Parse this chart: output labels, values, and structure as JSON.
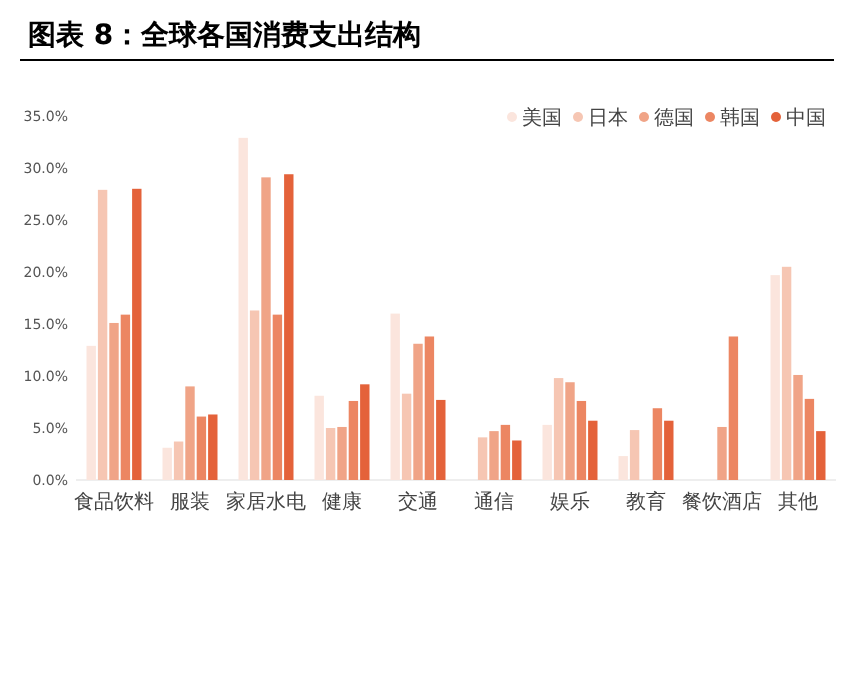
{
  "chart_data": {
    "type": "bar",
    "title": "图表 8：全球各国消费支出结构",
    "categories": [
      "食品饮料",
      "服装",
      "家居水电",
      "健康",
      "交通",
      "通信",
      "娱乐",
      "教育",
      "餐饮酒店",
      "其他"
    ],
    "series": [
      {
        "name": "美国",
        "color": "#fbe5dd",
        "values": [
          12.9,
          3.1,
          32.9,
          8.1,
          16.0,
          null,
          5.3,
          2.3,
          null,
          19.7
        ]
      },
      {
        "name": "日本",
        "color": "#f6c6b3",
        "values": [
          27.9,
          3.7,
          16.3,
          5.0,
          8.3,
          4.1,
          9.8,
          4.8,
          null,
          20.5
        ]
      },
      {
        "name": "德国",
        "color": "#f0a487",
        "values": [
          15.1,
          9.0,
          29.1,
          5.1,
          13.1,
          4.7,
          9.4,
          null,
          5.1,
          10.1
        ]
      },
      {
        "name": "韩国",
        "color": "#ec8662",
        "values": [
          15.9,
          6.1,
          15.9,
          7.6,
          13.8,
          5.3,
          7.6,
          6.9,
          13.8,
          7.8
        ]
      },
      {
        "name": "中国",
        "color": "#e4623a",
        "values": [
          28.0,
          6.3,
          29.4,
          9.2,
          7.7,
          3.8,
          5.7,
          5.7,
          null,
          4.7
        ]
      }
    ],
    "ylim": [
      0,
      35
    ],
    "yticks": [
      {
        "value": 0,
        "label": "0.0%"
      },
      {
        "value": 5,
        "label": "5.0%"
      },
      {
        "value": 10,
        "label": "10.0%"
      },
      {
        "value": 15,
        "label": "15.0%"
      },
      {
        "value": 20,
        "label": "20.0%"
      },
      {
        "value": 25,
        "label": "25.0%"
      },
      {
        "value": 30,
        "label": "30.0%"
      },
      {
        "value": 35,
        "label": "35.0%"
      }
    ],
    "grid": false,
    "legend": "top right"
  }
}
